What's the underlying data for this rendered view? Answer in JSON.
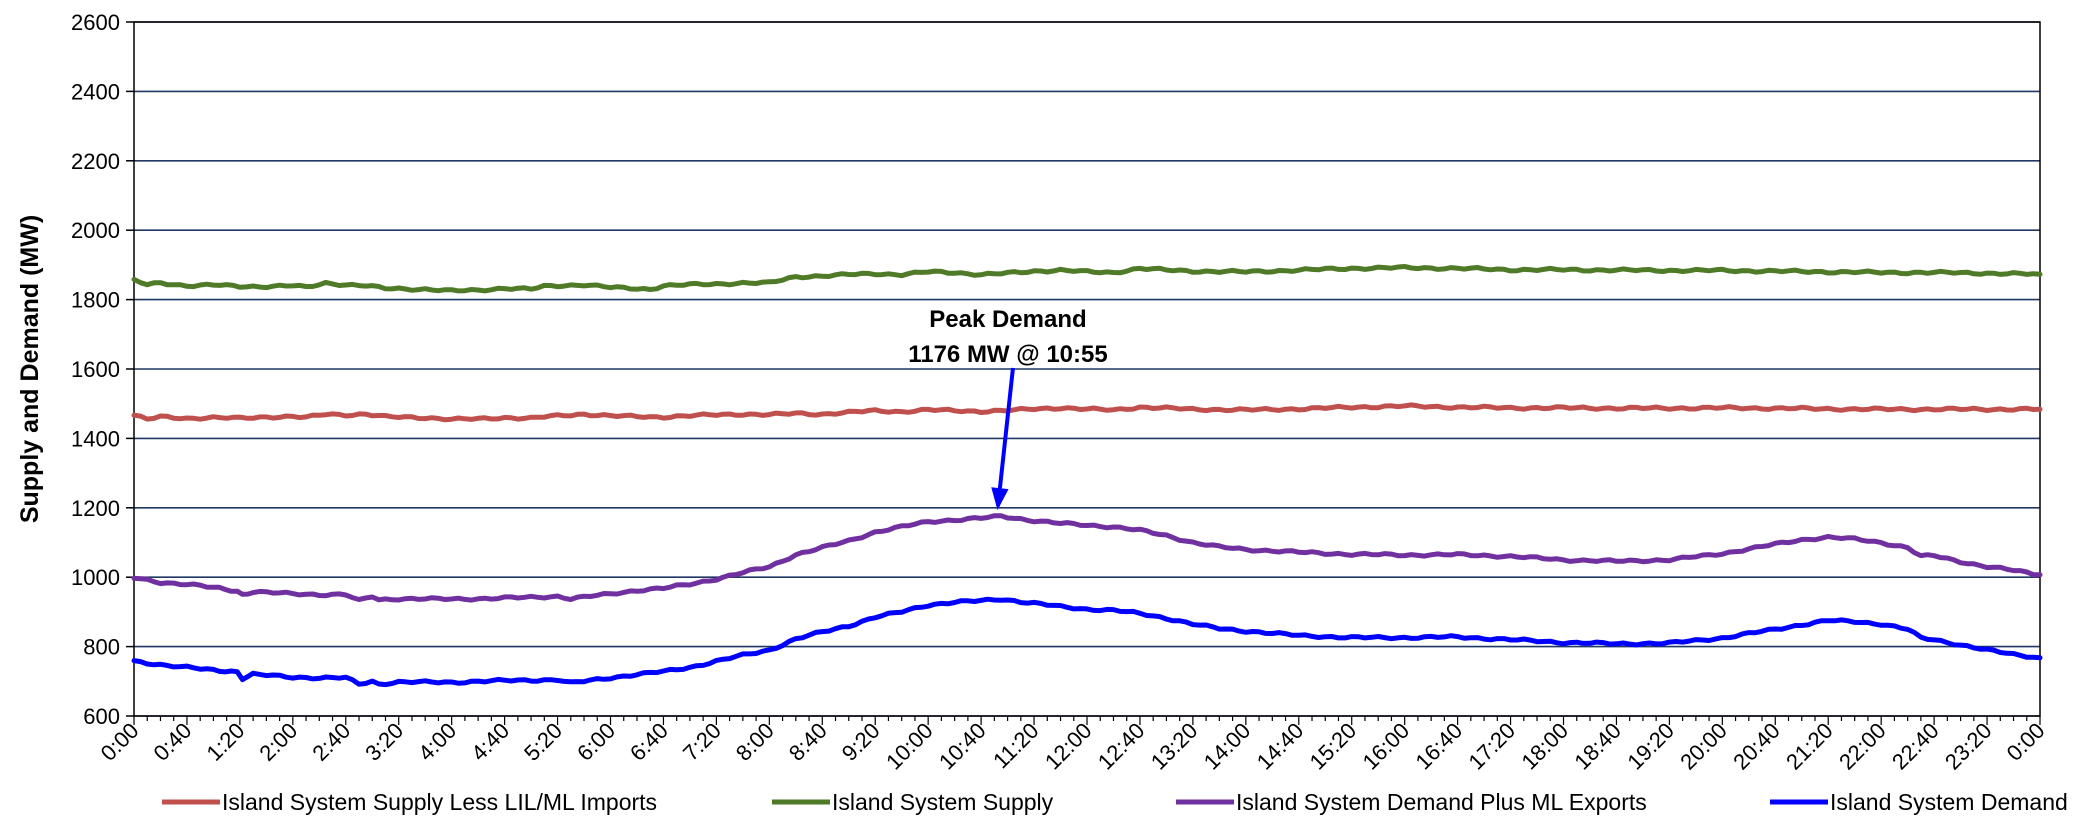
{
  "chart_data": {
    "type": "line",
    "title": "",
    "xlabel": "",
    "ylabel": "Supply and Demand (MW)",
    "ylim": [
      600,
      2600
    ],
    "yticks": [
      600,
      800,
      1000,
      1200,
      1400,
      1600,
      1800,
      2000,
      2200,
      2400,
      2600
    ],
    "x_tick_labels": [
      "0:00",
      "0:40",
      "1:20",
      "2:00",
      "2:40",
      "3:20",
      "4:00",
      "4:40",
      "5:20",
      "6:00",
      "6:40",
      "7:20",
      "8:00",
      "8:40",
      "9:20",
      "10:00",
      "10:40",
      "11:20",
      "12:00",
      "12:40",
      "13:20",
      "14:00",
      "14:40",
      "15:20",
      "16:00",
      "16:40",
      "17:20",
      "18:00",
      "18:40",
      "19:20",
      "20:00",
      "20:40",
      "21:20",
      "22:00",
      "22:40",
      "23:20",
      "0:00"
    ],
    "x_tick_minutes": [
      0,
      40,
      80,
      120,
      160,
      200,
      240,
      280,
      320,
      360,
      400,
      440,
      480,
      520,
      560,
      600,
      640,
      680,
      720,
      760,
      800,
      840,
      880,
      920,
      960,
      1000,
      1040,
      1080,
      1120,
      1160,
      1200,
      1240,
      1280,
      1320,
      1360,
      1400,
      1440
    ],
    "xlim_minutes": [
      0,
      1440
    ],
    "grid": true,
    "legend_position": "bottom",
    "annotation": {
      "line1": "Peak Demand",
      "line2": "1176 MW @ 10:55",
      "x_minutes": 655,
      "y": 1176
    },
    "series": [
      {
        "name": "Island System Supply Less LIL/ML Imports",
        "color": "#c0504d",
        "points": [
          [
            0,
            1467
          ],
          [
            10,
            1455
          ],
          [
            20,
            1462
          ],
          [
            40,
            1458
          ],
          [
            60,
            1460
          ],
          [
            80,
            1458
          ],
          [
            100,
            1462
          ],
          [
            120,
            1463
          ],
          [
            130,
            1460
          ],
          [
            145,
            1470
          ],
          [
            160,
            1468
          ],
          [
            175,
            1470
          ],
          [
            190,
            1462
          ],
          [
            220,
            1460
          ],
          [
            240,
            1455
          ],
          [
            260,
            1456
          ],
          [
            280,
            1460
          ],
          [
            300,
            1458
          ],
          [
            310,
            1462
          ],
          [
            320,
            1465
          ],
          [
            340,
            1470
          ],
          [
            360,
            1465
          ],
          [
            390,
            1462
          ],
          [
            400,
            1462
          ],
          [
            420,
            1465
          ],
          [
            440,
            1468
          ],
          [
            460,
            1470
          ],
          [
            480,
            1468
          ],
          [
            500,
            1472
          ],
          [
            520,
            1470
          ],
          [
            540,
            1475
          ],
          [
            560,
            1480
          ],
          [
            580,
            1477
          ],
          [
            600,
            1482
          ],
          [
            620,
            1480
          ],
          [
            640,
            1478
          ],
          [
            660,
            1480
          ],
          [
            680,
            1485
          ],
          [
            700,
            1488
          ],
          [
            720,
            1484
          ],
          [
            740,
            1482
          ],
          [
            760,
            1490
          ],
          [
            780,
            1487
          ],
          [
            800,
            1484
          ],
          [
            840,
            1482
          ],
          [
            880,
            1485
          ],
          [
            920,
            1490
          ],
          [
            960,
            1493
          ],
          [
            1000,
            1490
          ],
          [
            1040,
            1488
          ],
          [
            1080,
            1488
          ],
          [
            1120,
            1487
          ],
          [
            1160,
            1487
          ],
          [
            1200,
            1488
          ],
          [
            1240,
            1487
          ],
          [
            1280,
            1485
          ],
          [
            1320,
            1484
          ],
          [
            1360,
            1484
          ],
          [
            1400,
            1484
          ],
          [
            1440,
            1484
          ]
        ]
      },
      {
        "name": "Island System Supply",
        "color": "#4f7a28",
        "points": [
          [
            0,
            1855
          ],
          [
            10,
            1843
          ],
          [
            20,
            1848
          ],
          [
            40,
            1840
          ],
          [
            60,
            1842
          ],
          [
            80,
            1838
          ],
          [
            100,
            1838
          ],
          [
            120,
            1840
          ],
          [
            130,
            1835
          ],
          [
            145,
            1848
          ],
          [
            160,
            1843
          ],
          [
            175,
            1840
          ],
          [
            190,
            1832
          ],
          [
            220,
            1830
          ],
          [
            240,
            1825
          ],
          [
            260,
            1827
          ],
          [
            280,
            1833
          ],
          [
            300,
            1830
          ],
          [
            310,
            1838
          ],
          [
            320,
            1840
          ],
          [
            340,
            1843
          ],
          [
            360,
            1835
          ],
          [
            390,
            1830
          ],
          [
            400,
            1840
          ],
          [
            420,
            1843
          ],
          [
            440,
            1845
          ],
          [
            460,
            1848
          ],
          [
            480,
            1848
          ],
          [
            500,
            1866
          ],
          [
            520,
            1868
          ],
          [
            540,
            1872
          ],
          [
            560,
            1875
          ],
          [
            580,
            1872
          ],
          [
            600,
            1880
          ],
          [
            620,
            1878
          ],
          [
            640,
            1872
          ],
          [
            660,
            1876
          ],
          [
            680,
            1882
          ],
          [
            700,
            1885
          ],
          [
            720,
            1880
          ],
          [
            740,
            1878
          ],
          [
            760,
            1890
          ],
          [
            780,
            1885
          ],
          [
            800,
            1882
          ],
          [
            840,
            1880
          ],
          [
            880,
            1885
          ],
          [
            920,
            1890
          ],
          [
            960,
            1892
          ],
          [
            1000,
            1890
          ],
          [
            1040,
            1886
          ],
          [
            1080,
            1886
          ],
          [
            1120,
            1885
          ],
          [
            1160,
            1884
          ],
          [
            1200,
            1884
          ],
          [
            1240,
            1882
          ],
          [
            1280,
            1880
          ],
          [
            1320,
            1878
          ],
          [
            1360,
            1878
          ],
          [
            1400,
            1876
          ],
          [
            1440,
            1873
          ]
        ]
      },
      {
        "name": "Island System Demand Plus ML Exports",
        "color": "#7030a0",
        "points": [
          [
            0,
            998
          ],
          [
            20,
            985
          ],
          [
            40,
            980
          ],
          [
            60,
            970
          ],
          [
            78,
            960
          ],
          [
            82,
            950
          ],
          [
            90,
            958
          ],
          [
            120,
            952
          ],
          [
            140,
            950
          ],
          [
            160,
            950
          ],
          [
            170,
            932
          ],
          [
            180,
            945
          ],
          [
            185,
            935
          ],
          [
            200,
            938
          ],
          [
            240,
            937
          ],
          [
            260,
            938
          ],
          [
            280,
            940
          ],
          [
            300,
            942
          ],
          [
            320,
            945
          ],
          [
            330,
            938
          ],
          [
            360,
            952
          ],
          [
            380,
            962
          ],
          [
            400,
            968
          ],
          [
            420,
            980
          ],
          [
            440,
            995
          ],
          [
            460,
            1013
          ],
          [
            480,
            1030
          ],
          [
            500,
            1065
          ],
          [
            520,
            1085
          ],
          [
            540,
            1105
          ],
          [
            560,
            1130
          ],
          [
            580,
            1145
          ],
          [
            600,
            1160
          ],
          [
            620,
            1165
          ],
          [
            640,
            1170
          ],
          [
            655,
            1176
          ],
          [
            680,
            1163
          ],
          [
            700,
            1155
          ],
          [
            720,
            1150
          ],
          [
            740,
            1145
          ],
          [
            760,
            1135
          ],
          [
            780,
            1120
          ],
          [
            800,
            1100
          ],
          [
            820,
            1087
          ],
          [
            840,
            1080
          ],
          [
            880,
            1072
          ],
          [
            920,
            1066
          ],
          [
            960,
            1064
          ],
          [
            1000,
            1065
          ],
          [
            1040,
            1060
          ],
          [
            1080,
            1050
          ],
          [
            1120,
            1046
          ],
          [
            1160,
            1050
          ],
          [
            1200,
            1068
          ],
          [
            1240,
            1095
          ],
          [
            1260,
            1108
          ],
          [
            1280,
            1115
          ],
          [
            1300,
            1110
          ],
          [
            1320,
            1100
          ],
          [
            1340,
            1085
          ],
          [
            1350,
            1060
          ],
          [
            1360,
            1062
          ],
          [
            1380,
            1045
          ],
          [
            1400,
            1030
          ],
          [
            1420,
            1020
          ],
          [
            1440,
            1007
          ]
        ]
      },
      {
        "name": "Island System Demand",
        "color": "#0000ff",
        "points": [
          [
            0,
            758
          ],
          [
            20,
            748
          ],
          [
            40,
            740
          ],
          [
            60,
            732
          ],
          [
            78,
            728
          ],
          [
            82,
            708
          ],
          [
            90,
            720
          ],
          [
            120,
            712
          ],
          [
            140,
            710
          ],
          [
            160,
            710
          ],
          [
            170,
            692
          ],
          [
            180,
            700
          ],
          [
            185,
            692
          ],
          [
            200,
            698
          ],
          [
            240,
            697
          ],
          [
            260,
            700
          ],
          [
            280,
            702
          ],
          [
            300,
            703
          ],
          [
            320,
            705
          ],
          [
            330,
            695
          ],
          [
            360,
            710
          ],
          [
            380,
            720
          ],
          [
            400,
            728
          ],
          [
            420,
            740
          ],
          [
            440,
            758
          ],
          [
            460,
            775
          ],
          [
            480,
            790
          ],
          [
            500,
            822
          ],
          [
            520,
            842
          ],
          [
            540,
            860
          ],
          [
            560,
            885
          ],
          [
            580,
            900
          ],
          [
            600,
            920
          ],
          [
            620,
            928
          ],
          [
            640,
            932
          ],
          [
            655,
            937
          ],
          [
            680,
            925
          ],
          [
            700,
            915
          ],
          [
            720,
            908
          ],
          [
            740,
            905
          ],
          [
            760,
            895
          ],
          [
            780,
            882
          ],
          [
            800,
            865
          ],
          [
            820,
            852
          ],
          [
            840,
            845
          ],
          [
            880,
            832
          ],
          [
            920,
            826
          ],
          [
            960,
            826
          ],
          [
            1000,
            828
          ],
          [
            1040,
            820
          ],
          [
            1080,
            812
          ],
          [
            1120,
            808
          ],
          [
            1160,
            810
          ],
          [
            1200,
            825
          ],
          [
            1240,
            850
          ],
          [
            1260,
            863
          ],
          [
            1280,
            875
          ],
          [
            1300,
            872
          ],
          [
            1320,
            865
          ],
          [
            1340,
            850
          ],
          [
            1350,
            825
          ],
          [
            1360,
            820
          ],
          [
            1380,
            805
          ],
          [
            1400,
            790
          ],
          [
            1420,
            778
          ],
          [
            1440,
            768
          ]
        ]
      }
    ]
  }
}
